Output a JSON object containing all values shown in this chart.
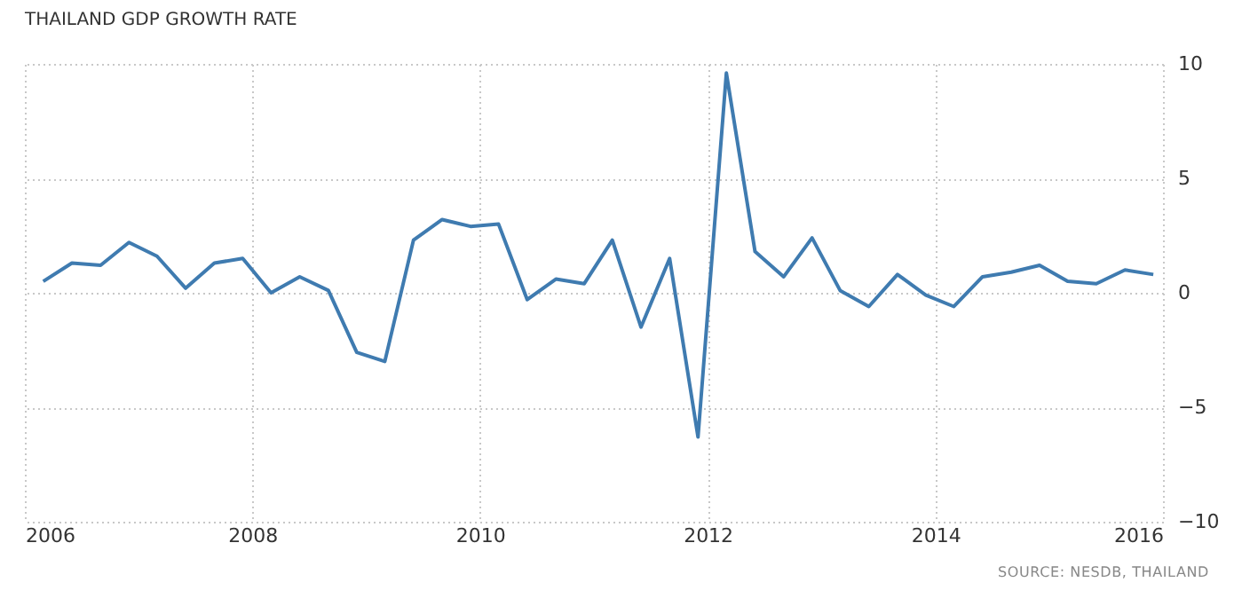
{
  "chart_data": {
    "type": "line",
    "title": "THAILAND GDP GROWTH RATE",
    "x": [
      "2006-03",
      "2006-06",
      "2006-09",
      "2006-12",
      "2007-03",
      "2007-06",
      "2007-09",
      "2007-12",
      "2008-03",
      "2008-06",
      "2008-09",
      "2008-12",
      "2009-03",
      "2009-06",
      "2009-09",
      "2009-12",
      "2010-03",
      "2010-06",
      "2010-09",
      "2010-12",
      "2011-03",
      "2011-06",
      "2011-09",
      "2011-12",
      "2012-03",
      "2012-06",
      "2012-09",
      "2012-12",
      "2013-03",
      "2013-06",
      "2013-09",
      "2013-12",
      "2014-03",
      "2014-06",
      "2014-09",
      "2014-12",
      "2015-03",
      "2015-06",
      "2015-09",
      "2015-12"
    ],
    "series": [
      {
        "color": "#3f7bb0",
        "values": [
          0.5,
          1.3,
          1.2,
          2.2,
          1.6,
          0.2,
          1.3,
          1.5,
          0.0,
          0.7,
          0.1,
          -2.6,
          -3.0,
          2.3,
          3.2,
          2.9,
          3.0,
          -0.3,
          0.6,
          0.4,
          2.3,
          -1.5,
          1.5,
          -6.3,
          9.6,
          1.8,
          0.7,
          2.4,
          0.1,
          -0.6,
          0.8,
          -0.1,
          -0.6,
          0.7,
          0.9,
          1.2,
          0.5,
          0.4,
          1.0,
          0.8
        ]
      }
    ],
    "xlim": [
      "2006",
      "2016"
    ],
    "xticks": [
      "2006",
      "2008",
      "2010",
      "2012",
      "2014",
      "2016"
    ],
    "ylim": [
      -10,
      10
    ],
    "yticks": [
      -10,
      -5,
      0,
      5,
      10
    ],
    "grid": true,
    "annotations": [
      "SOURCE: NESDB, THAILAND"
    ]
  }
}
